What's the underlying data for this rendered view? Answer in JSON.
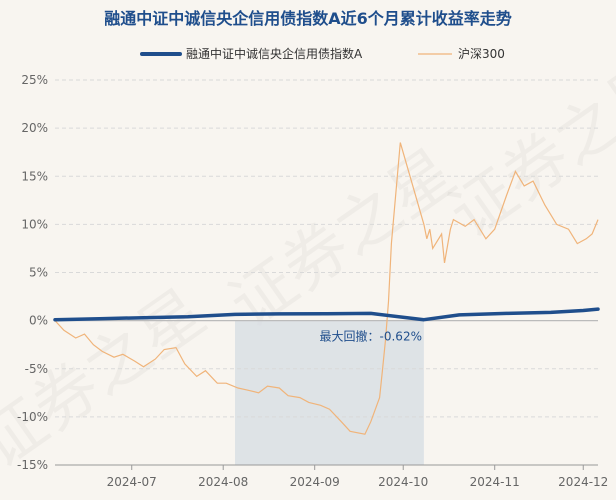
{
  "chart_data": {
    "type": "line",
    "title": "融通中证中诚信央企信用债指数A近6个月累计收益率走势",
    "xlabel": "",
    "ylabel": "",
    "x_range": [
      "2024-06-05",
      "2024-12-06"
    ],
    "ylim": [
      -15,
      25
    ],
    "y_ticks": [
      -15,
      -10,
      -5,
      0,
      5,
      10,
      15,
      20,
      25
    ],
    "y_tick_labels": [
      "-15%",
      "-10%",
      "-5%",
      "0%",
      "5%",
      "10%",
      "15%",
      "20%",
      "25%"
    ],
    "x_ticks": [
      "2024-07-01",
      "2024-08-01",
      "2024-09-01",
      "2024-10-01",
      "2024-11-01",
      "2024-12-01"
    ],
    "x_tick_labels": [
      "2024-07",
      "2024-08",
      "2024-09",
      "2024-10",
      "2024-11",
      "2024-12"
    ],
    "grid": true,
    "legend_position": "top",
    "drawdown_region": {
      "start": "2024-08-05",
      "end": "2024-10-08"
    },
    "annotation": {
      "text": "最大回撤：-0.62%",
      "x": "2024-09-20",
      "y": -0.62
    },
    "watermark": "证券之星",
    "colors": {
      "fund": "#1f4e8c",
      "index": "#f0b47a",
      "shade": "#d5dce3",
      "zero": "#bbbbbb",
      "grid": "#d9d9d9"
    },
    "series": [
      {
        "name": "融通中证中诚信央企信用债指数A",
        "style": "thick",
        "x": [
          "2024-06-05",
          "2024-06-20",
          "2024-07-05",
          "2024-07-20",
          "2024-08-05",
          "2024-08-20",
          "2024-09-05",
          "2024-09-20",
          "2024-10-08",
          "2024-10-20",
          "2024-11-05",
          "2024-11-20",
          "2024-12-01",
          "2024-12-06"
        ],
        "values": [
          0.1,
          0.2,
          0.3,
          0.4,
          0.65,
          0.7,
          0.72,
          0.75,
          0.1,
          0.6,
          0.75,
          0.85,
          1.05,
          1.2
        ]
      },
      {
        "name": "沪深300",
        "style": "thin",
        "x": [
          "2024-06-05",
          "2024-06-08",
          "2024-06-12",
          "2024-06-15",
          "2024-06-18",
          "2024-06-21",
          "2024-06-25",
          "2024-06-28",
          "2024-07-02",
          "2024-07-05",
          "2024-07-09",
          "2024-07-12",
          "2024-07-16",
          "2024-07-19",
          "2024-07-23",
          "2024-07-26",
          "2024-07-30",
          "2024-08-02",
          "2024-08-06",
          "2024-08-09",
          "2024-08-13",
          "2024-08-16",
          "2024-08-20",
          "2024-08-23",
          "2024-08-27",
          "2024-08-30",
          "2024-09-03",
          "2024-09-06",
          "2024-09-10",
          "2024-09-13",
          "2024-09-18",
          "2024-09-20",
          "2024-09-23",
          "2024-09-24",
          "2024-09-25",
          "2024-09-26",
          "2024-09-27",
          "2024-09-30",
          "2024-10-08",
          "2024-10-09",
          "2024-10-10",
          "2024-10-11",
          "2024-10-14",
          "2024-10-15",
          "2024-10-17",
          "2024-10-18",
          "2024-10-22",
          "2024-10-25",
          "2024-10-29",
          "2024-11-01",
          "2024-11-05",
          "2024-11-08",
          "2024-11-11",
          "2024-11-14",
          "2024-11-18",
          "2024-11-22",
          "2024-11-26",
          "2024-11-29",
          "2024-12-02",
          "2024-12-04",
          "2024-12-06"
        ],
        "values": [
          0.0,
          -1.0,
          -1.8,
          -1.4,
          -2.5,
          -3.2,
          -3.8,
          -3.5,
          -4.2,
          -4.8,
          -4.0,
          -3.0,
          -2.8,
          -4.5,
          -5.8,
          -5.2,
          -6.5,
          -6.5,
          -7.0,
          -7.2,
          -7.5,
          -6.8,
          -7.0,
          -7.8,
          -8.0,
          -8.5,
          -8.8,
          -9.2,
          -10.5,
          -11.5,
          -11.8,
          -10.5,
          -8.0,
          -5.0,
          -2.0,
          2.0,
          8.0,
          18.5,
          10.0,
          8.5,
          9.5,
          7.5,
          9.0,
          6.0,
          9.5,
          10.5,
          9.8,
          10.5,
          8.5,
          9.5,
          13.0,
          15.5,
          14.0,
          14.5,
          12.0,
          10.0,
          9.5,
          8.0,
          8.5,
          9.0,
          10.5
        ]
      }
    ]
  }
}
